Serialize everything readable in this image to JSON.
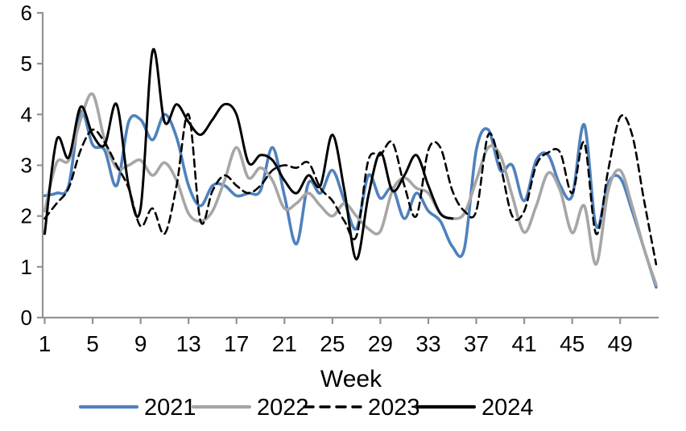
{
  "chart_data": {
    "type": "line",
    "title": "",
    "xlabel": "Week",
    "ylabel": "",
    "ylim": [
      0,
      6
    ],
    "yticks": [
      0,
      1,
      2,
      3,
      4,
      5,
      6
    ],
    "xticks": [
      1,
      5,
      9,
      13,
      17,
      21,
      25,
      29,
      33,
      37,
      41,
      45,
      49
    ],
    "x_start": 1,
    "x_step": 1,
    "x_max": 52,
    "grid": "off",
    "legend_position": "bottom",
    "axis_color": "#929292",
    "text_color": "#000000",
    "background_color": "#ffffff",
    "series": [
      {
        "name": "2021",
        "color": "#4f81bd",
        "style": "solid",
        "width": 3.6,
        "values": [
          2.4,
          2.45,
          2.6,
          4.05,
          3.4,
          3.3,
          2.6,
          3.85,
          3.9,
          3.5,
          4.0,
          3.55,
          2.6,
          2.2,
          2.6,
          2.6,
          2.4,
          2.45,
          2.5,
          3.35,
          2.4,
          1.45,
          2.65,
          2.45,
          2.9,
          2.3,
          1.75,
          2.8,
          2.35,
          2.55,
          1.95,
          2.45,
          2.1,
          1.9,
          1.4,
          1.35,
          3.3,
          3.7,
          2.9,
          3.0,
          2.3,
          3.1,
          3.2,
          2.6,
          2.4,
          3.8,
          1.8,
          2.65,
          2.75,
          2.1,
          1.35,
          0.6
        ]
      },
      {
        "name": "2022",
        "color": "#a6a6a6",
        "style": "solid",
        "width": 3.6,
        "values": [
          2.1,
          3.05,
          3.1,
          3.9,
          4.4,
          3.5,
          2.95,
          3.0,
          3.1,
          2.8,
          3.05,
          2.7,
          2.05,
          1.9,
          2.1,
          2.7,
          3.35,
          2.75,
          2.95,
          2.7,
          2.15,
          2.25,
          2.45,
          2.2,
          2.0,
          2.25,
          2.0,
          1.75,
          1.7,
          2.5,
          2.75,
          2.55,
          2.45,
          2.05,
          1.95,
          2.05,
          2.7,
          3.35,
          3.2,
          2.4,
          1.68,
          2.2,
          2.85,
          2.5,
          1.67,
          2.2,
          1.05,
          2.5,
          2.9,
          2.2,
          1.35,
          0.65
        ]
      },
      {
        "name": "2023",
        "color": "#000000",
        "style": "dashed",
        "width": 2.6,
        "dash": "9 6",
        "values": [
          1.95,
          2.25,
          2.55,
          3.3,
          3.7,
          3.45,
          3.0,
          2.55,
          1.8,
          2.15,
          1.65,
          2.6,
          4.0,
          1.9,
          2.5,
          2.8,
          2.6,
          2.45,
          2.6,
          2.9,
          3.0,
          2.95,
          3.05,
          2.55,
          2.3,
          1.9,
          1.6,
          3.1,
          3.2,
          3.45,
          2.6,
          2.0,
          3.3,
          3.35,
          2.5,
          2.1,
          2.1,
          3.6,
          3.0,
          2.0,
          2.1,
          3.0,
          3.25,
          3.25,
          2.45,
          3.45,
          1.65,
          2.9,
          3.95,
          3.6,
          2.3,
          1.05
        ]
      },
      {
        "name": "2024",
        "color": "#000000",
        "style": "solid",
        "width": 3.0,
        "values": [
          1.65,
          3.5,
          3.15,
          4.15,
          3.6,
          3.4,
          4.2,
          2.6,
          2.15,
          5.25,
          3.85,
          4.2,
          3.85,
          3.6,
          3.9,
          4.2,
          4.0,
          3.05,
          3.2,
          3.1,
          2.7,
          2.45,
          2.8,
          2.6,
          3.6,
          2.5,
          1.15,
          2.4,
          3.25,
          2.5,
          2.8,
          3.2,
          2.6,
          2.05,
          1.95
        ]
      }
    ]
  }
}
